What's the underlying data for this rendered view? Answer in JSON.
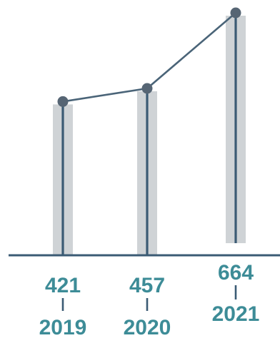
{
  "chart_data": {
    "type": "bar",
    "categories": [
      "2019",
      "2020",
      "2021"
    ],
    "values": [
      421,
      457,
      664
    ],
    "value_labels": [
      "421",
      "457",
      "664"
    ],
    "overlay": "line",
    "ylim": [
      0,
      664
    ],
    "grid": false,
    "legend": "none",
    "colors": {
      "bar": "#cfd3d6",
      "stem": "#3b5b74",
      "line": "#4a6478",
      "marker": "#566574",
      "baseline": "#3b5b74",
      "text": "#3d8c97"
    }
  }
}
